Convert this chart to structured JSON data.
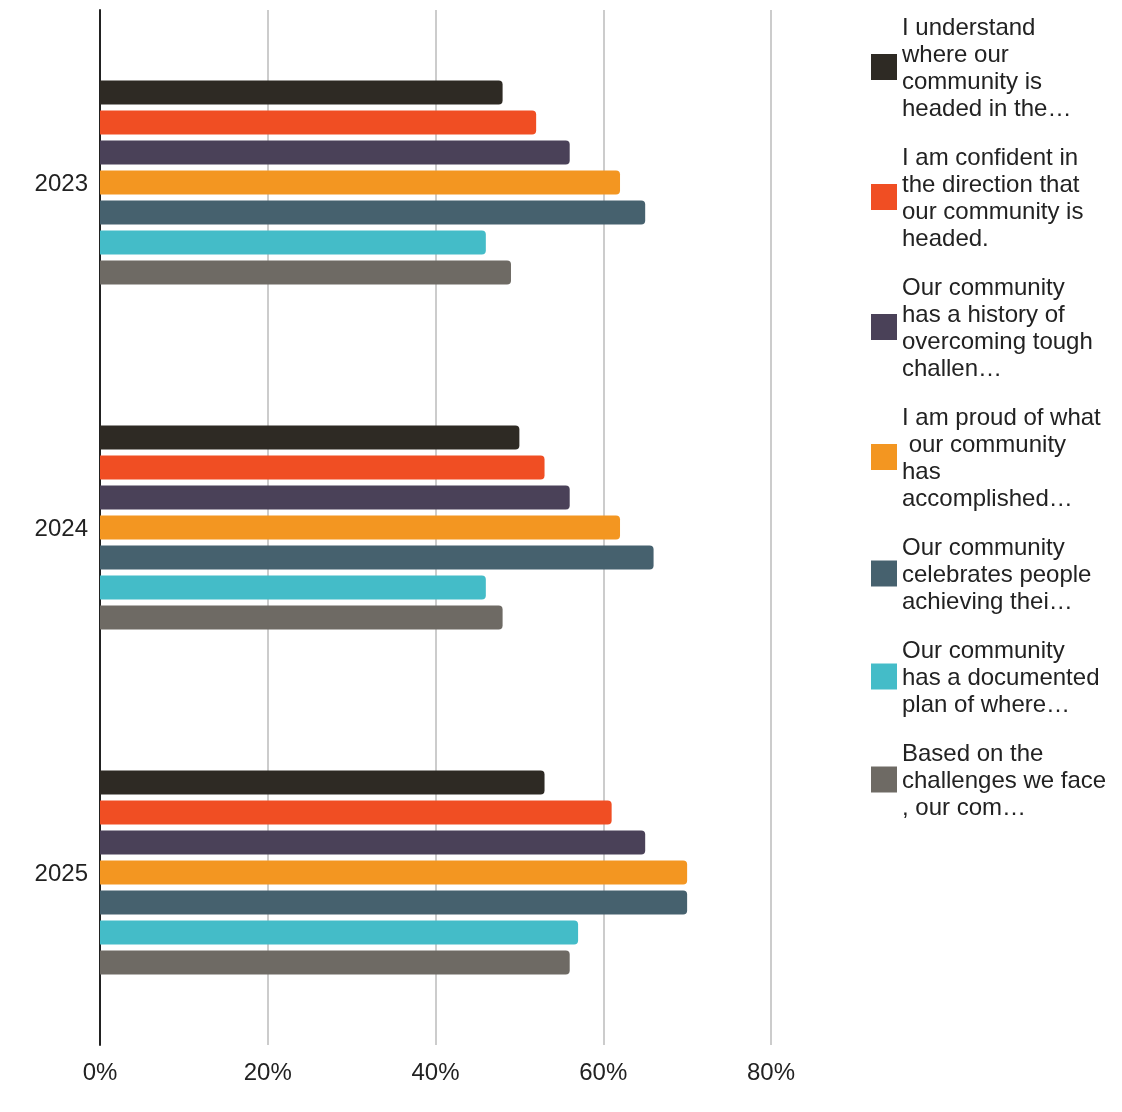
{
  "chart_data": {
    "type": "bar",
    "orientation": "horizontal",
    "categories": [
      "2023",
      "2024",
      "2025"
    ],
    "series": [
      {
        "name": "I understand where our community is headed in the…",
        "color": "#2e2a24",
        "values": [
          48,
          50,
          53
        ]
      },
      {
        "name": "I am confident in the direction that our community is headed.",
        "color": "#f04e23",
        "values": [
          52,
          53,
          61
        ]
      },
      {
        "name": "Our community has a history of overcoming tough challen…",
        "color": "#4a4158",
        "values": [
          56,
          56,
          65
        ]
      },
      {
        "name": "I am proud of what our community has accomplished…",
        "color": "#f39621",
        "values": [
          62,
          62,
          70
        ]
      },
      {
        "name": "Our community celebrates people achieving thei…",
        "color": "#46616e",
        "values": [
          65,
          66,
          70
        ]
      },
      {
        "name": "Our community has a documented plan of where…",
        "color": "#44bcc8",
        "values": [
          46,
          46,
          57
        ]
      },
      {
        "name": "Based on the challenges we face, our com…",
        "color": "#6e6a64",
        "values": [
          49,
          48,
          56
        ]
      }
    ],
    "xlim": [
      0,
      80
    ],
    "xticks": [
      {
        "value": 0,
        "label": "0%"
      },
      {
        "value": 20,
        "label": "20%"
      },
      {
        "value": 40,
        "label": "40%"
      },
      {
        "value": 60,
        "label": "60%"
      },
      {
        "value": 80,
        "label": "80%"
      }
    ],
    "grid": "x",
    "legend": "right"
  }
}
